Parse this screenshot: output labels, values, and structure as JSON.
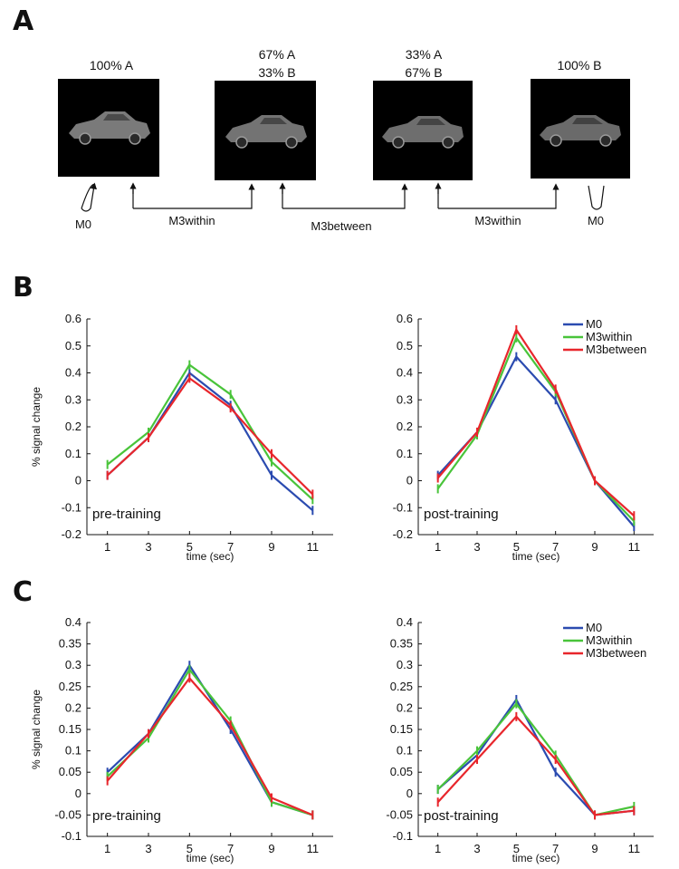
{
  "panels": {
    "a": "A",
    "b": "B",
    "c": "C"
  },
  "morph": {
    "images": [
      {
        "lines": [
          "100% A"
        ]
      },
      {
        "lines": [
          "67% A",
          "33% B"
        ]
      },
      {
        "lines": [
          "33% A",
          "67% B"
        ]
      },
      {
        "lines": [
          "100% B"
        ]
      }
    ],
    "connections": {
      "m0_left": "M0",
      "m3within_left": "M3within",
      "m3between": "M3between",
      "m3within_right": "M3within",
      "m0_right": "M0"
    }
  },
  "colors": {
    "M0": "#2b4bb0",
    "M3within": "#49c43a",
    "M3between": "#e8262c"
  },
  "chart_data": [
    {
      "id": "B-pre",
      "type": "line",
      "xlabel": "time (sec)",
      "ylabel": "% signal change",
      "annotation": "pre-training",
      "x": [
        1,
        3,
        5,
        7,
        9,
        11
      ],
      "ylim": [
        -0.2,
        0.6
      ],
      "yticks": [
        -0.2,
        -0.1,
        0,
        0.1,
        0.2,
        0.3,
        0.4,
        0.5,
        0.6
      ],
      "yticklabels": [
        "-0.2",
        "-0.1",
        "0",
        "0.1",
        "0.2",
        "0.3",
        "0.4",
        "0.5",
        "0.6"
      ],
      "legend": false,
      "series": [
        {
          "name": "M0",
          "values": [
            0.02,
            0.16,
            0.4,
            0.28,
            0.02,
            -0.11
          ]
        },
        {
          "name": "M3within",
          "values": [
            0.06,
            0.18,
            0.43,
            0.32,
            0.07,
            -0.07
          ]
        },
        {
          "name": "M3between",
          "values": [
            0.02,
            0.16,
            0.38,
            0.27,
            0.1,
            -0.05
          ]
        }
      ]
    },
    {
      "id": "B-post",
      "type": "line",
      "xlabel": "time (sec)",
      "ylabel": "",
      "annotation": "post-training",
      "x": [
        1,
        3,
        5,
        7,
        9,
        11
      ],
      "ylim": [
        -0.2,
        0.6
      ],
      "yticks": [
        -0.2,
        -0.1,
        0,
        0.1,
        0.2,
        0.3,
        0.4,
        0.5,
        0.6
      ],
      "yticklabels": [
        "-0.2",
        "-0.1",
        "0",
        "0.1",
        "0.2",
        "0.3",
        "0.4",
        "0.5",
        "0.6"
      ],
      "legend": true,
      "series": [
        {
          "name": "M0",
          "values": [
            0.02,
            0.18,
            0.46,
            0.3,
            0.0,
            -0.17
          ]
        },
        {
          "name": "M3within",
          "values": [
            -0.03,
            0.17,
            0.53,
            0.33,
            0.0,
            -0.15
          ]
        },
        {
          "name": "M3between",
          "values": [
            0.01,
            0.18,
            0.56,
            0.34,
            0.0,
            -0.13
          ]
        }
      ]
    },
    {
      "id": "C-pre",
      "type": "line",
      "xlabel": "time (sec)",
      "ylabel": "% signal change",
      "annotation": "pre-training",
      "x": [
        1,
        3,
        5,
        7,
        9,
        11
      ],
      "ylim": [
        -0.1,
        0.4
      ],
      "yticks": [
        -0.1,
        -0.05,
        0,
        0.05,
        0.1,
        0.15,
        0.2,
        0.25,
        0.3,
        0.35,
        0.4
      ],
      "yticklabels": [
        "-0.1",
        "-0.05",
        "0",
        "0.05",
        "0.1",
        "0.15",
        "0.2",
        "0.25",
        "0.3",
        "0.35",
        "0.4"
      ],
      "legend": false,
      "series": [
        {
          "name": "M0",
          "values": [
            0.05,
            0.14,
            0.3,
            0.15,
            -0.02,
            -0.05
          ]
        },
        {
          "name": "M3within",
          "values": [
            0.04,
            0.13,
            0.29,
            0.17,
            -0.02,
            -0.05
          ]
        },
        {
          "name": "M3between",
          "values": [
            0.03,
            0.14,
            0.27,
            0.16,
            -0.01,
            -0.05
          ]
        }
      ]
    },
    {
      "id": "C-post",
      "type": "line",
      "xlabel": "time (sec)",
      "ylabel": "",
      "annotation": "post-training",
      "x": [
        1,
        3,
        5,
        7,
        9,
        11
      ],
      "ylim": [
        -0.1,
        0.4
      ],
      "yticks": [
        -0.1,
        -0.05,
        0,
        0.05,
        0.1,
        0.15,
        0.2,
        0.25,
        0.3,
        0.35,
        0.4
      ],
      "yticklabels": [
        "-0.1",
        "-0.05",
        "0",
        "0.05",
        "0.1",
        "0.15",
        "0.2",
        "0.25",
        "0.3",
        "0.35",
        "0.4"
      ],
      "legend": true,
      "series": [
        {
          "name": "M0",
          "values": [
            0.01,
            0.09,
            0.22,
            0.05,
            -0.05,
            -0.04
          ]
        },
        {
          "name": "M3within",
          "values": [
            0.01,
            0.1,
            0.21,
            0.09,
            -0.05,
            -0.03
          ]
        },
        {
          "name": "M3between",
          "values": [
            -0.02,
            0.08,
            0.18,
            0.08,
            -0.05,
            -0.04
          ]
        }
      ]
    }
  ]
}
